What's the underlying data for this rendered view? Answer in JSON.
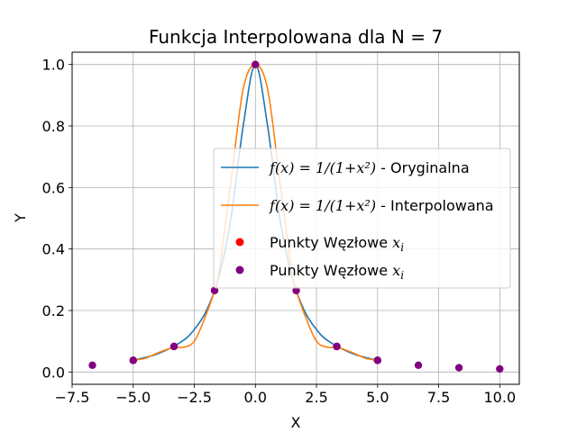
{
  "chart_data": {
    "type": "line",
    "title": "Funkcja Interpolowana dla N = 7",
    "xlabel": "X",
    "ylabel": "Y",
    "xlim": [
      -7.5,
      10.8
    ],
    "ylim": [
      -0.04,
      1.04
    ],
    "x_ticks": [
      -7.5,
      -5.0,
      -2.5,
      0.0,
      2.5,
      5.0,
      7.5,
      10.0
    ],
    "x_tick_labels": [
      "−7.5",
      "−5.0",
      "−2.5",
      "0.0",
      "2.5",
      "5.0",
      "7.5",
      "10.0"
    ],
    "y_ticks": [
      0.0,
      0.2,
      0.4,
      0.6,
      0.8,
      1.0
    ],
    "y_tick_labels": [
      "0.0",
      "0.2",
      "0.4",
      "0.6",
      "0.8",
      "1.0"
    ],
    "grid": true,
    "legend_position": "center-right",
    "series": [
      {
        "name": "f(x) = 1/(1+x²) - Oryginalna",
        "legend_math": "f(x) = 1/(1+x²)",
        "legend_suffix": " - Oryginalna",
        "kind": "line",
        "color": "#1f77b4",
        "x": [
          -5.0,
          -4.0,
          -3.0,
          -2.5,
          -2.0,
          -1.5,
          -1.0,
          -0.5,
          0.0,
          0.5,
          1.0,
          1.5,
          2.0,
          2.5,
          3.0,
          4.0,
          5.0
        ],
        "y": [
          0.038,
          0.059,
          0.1,
          0.138,
          0.2,
          0.308,
          0.5,
          0.8,
          1.0,
          0.8,
          0.5,
          0.308,
          0.2,
          0.138,
          0.1,
          0.059,
          0.038
        ]
      },
      {
        "name": "f(x) = 1/(1+x²) - Interpolowana",
        "legend_math": "f(x) = 1/(1+x²)",
        "legend_suffix": " - Interpolowana",
        "kind": "line",
        "color": "#ff7f0e",
        "x": [
          -5.0,
          -4.5,
          -4.0,
          -3.5,
          -3.33,
          -3.0,
          -2.5,
          -2.0,
          -1.67,
          -1.5,
          -1.0,
          -0.5,
          0.0,
          0.5,
          1.0,
          1.5,
          1.67,
          2.0,
          2.5,
          3.0,
          3.33,
          3.5,
          4.0,
          4.5,
          5.0
        ],
        "y": [
          0.038,
          0.045,
          0.062,
          0.077,
          0.083,
          0.08,
          0.1,
          0.19,
          0.265,
          0.32,
          0.62,
          0.92,
          1.0,
          0.92,
          0.62,
          0.32,
          0.265,
          0.19,
          0.1,
          0.08,
          0.083,
          0.077,
          0.062,
          0.045,
          0.038
        ]
      },
      {
        "name": "Punkty Węzłowe x_i",
        "legend_label": "Punkty Węzłowe ",
        "legend_sub": "i",
        "kind": "scatter",
        "color": "#ff0000",
        "x": [
          -5.0,
          -3.33,
          -1.67,
          0.0,
          1.67,
          3.33,
          5.0
        ],
        "y": [
          0.038,
          0.083,
          0.265,
          1.0,
          0.265,
          0.083,
          0.038
        ]
      },
      {
        "name": "Punkty Węzłowe x_i",
        "legend_label": "Punkty Węzłowe ",
        "legend_sub": "i",
        "kind": "scatter",
        "color": "#800080",
        "x": [
          -6.67,
          -5.0,
          -3.33,
          -1.67,
          0.0,
          1.67,
          3.33,
          5.0,
          6.67,
          8.33,
          10.0
        ],
        "y": [
          0.022,
          0.038,
          0.083,
          0.265,
          1.0,
          0.265,
          0.083,
          0.038,
          0.022,
          0.014,
          0.01
        ]
      }
    ]
  }
}
